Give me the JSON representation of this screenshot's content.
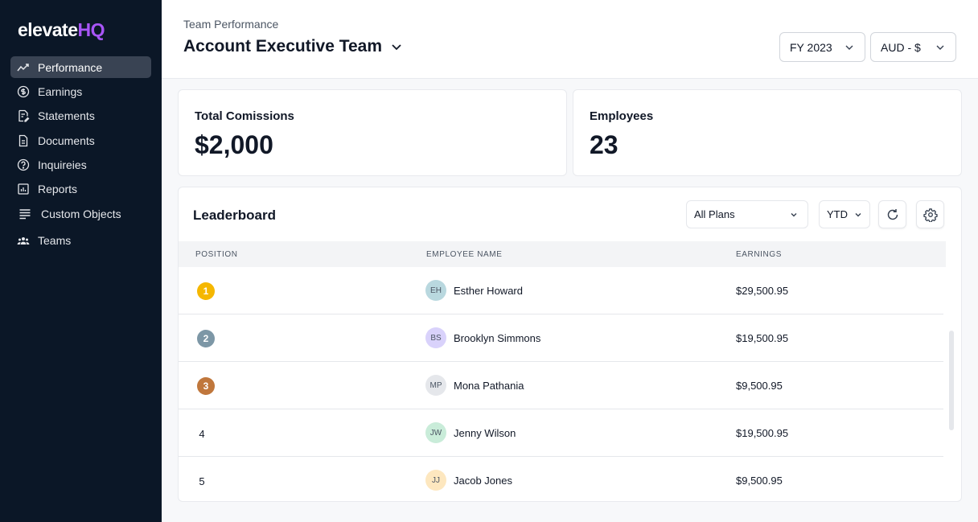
{
  "brand": {
    "name": "elevate",
    "suffix": "HQ",
    "accent": "#a855f7"
  },
  "sidebar": {
    "items": [
      {
        "label": "Performance",
        "icon": "trending-up-icon",
        "active": true
      },
      {
        "label": "Earnings",
        "icon": "dollar-circle-icon"
      },
      {
        "label": "Statements",
        "icon": "statement-icon"
      },
      {
        "label": "Documents",
        "icon": "document-icon"
      },
      {
        "label": "Inquireies",
        "icon": "help-circle-icon"
      },
      {
        "label": "Reports",
        "icon": "report-icon"
      },
      {
        "label": "Custom Objects",
        "icon": "list-icon"
      },
      {
        "label": "Teams",
        "icon": "teams-icon"
      }
    ]
  },
  "header": {
    "eyebrow": "Team Performance",
    "title": "Account Executive Team",
    "year_select": "FY 2023",
    "currency_select": "AUD - $"
  },
  "stats": {
    "commissions_label": "Total Comissions",
    "commissions_value": "$2,000",
    "employees_label": "Employees",
    "employees_value": "23"
  },
  "leaderboard": {
    "title": "Leaderboard",
    "plans_filter": "All Plans",
    "period_filter": "YTD",
    "columns": {
      "position": "POSITION",
      "name": "EMPLOYEE NAME",
      "earnings": "EARNINGS"
    },
    "rows": [
      {
        "position": "1",
        "medal": "#f5b700",
        "initials": "EH",
        "avatar_color": "#b9d8df",
        "name": "Esther Howard",
        "earnings": "$29,500.95"
      },
      {
        "position": "2",
        "medal": "#7d97a6",
        "initials": "BS",
        "avatar_color": "#d9d2fb",
        "name": "Brooklyn Simmons",
        "earnings": "$19,500.95"
      },
      {
        "position": "3",
        "medal": "#c0773c",
        "initials": "MP",
        "avatar_color": "#e5e7eb",
        "name": "Mona Pathania",
        "earnings": "$9,500.95"
      },
      {
        "position": "4",
        "initials": "JW",
        "avatar_color": "#c9ecd9",
        "name": "Jenny Wilson",
        "earnings": "$19,500.95"
      },
      {
        "position": "5",
        "initials": "JJ",
        "avatar_color": "#fde7bf",
        "name": "Jacob Jones",
        "earnings": "$9,500.95"
      }
    ]
  }
}
